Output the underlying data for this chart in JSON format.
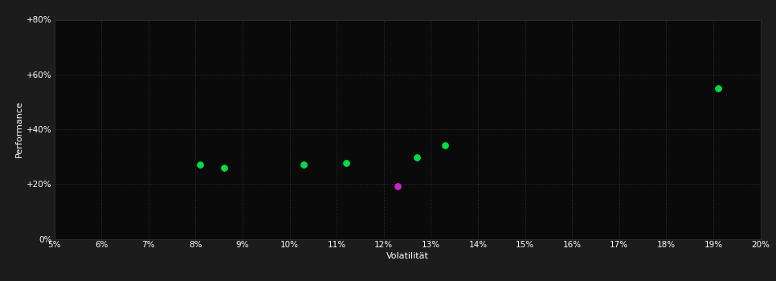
{
  "background_color": "#1c1c1c",
  "plot_bg_color": "#0a0a0a",
  "grid_color": "#3a3a3a",
  "text_color": "#ffffff",
  "xlabel": "Volatilität",
  "ylabel": "Performance",
  "xlim": [
    0.05,
    0.2
  ],
  "ylim": [
    0.0,
    0.8
  ],
  "xticks": [
    0.05,
    0.06,
    0.07,
    0.08,
    0.09,
    0.1,
    0.11,
    0.12,
    0.13,
    0.14,
    0.15,
    0.16,
    0.17,
    0.18,
    0.19,
    0.2
  ],
  "yticks": [
    0.0,
    0.2,
    0.4,
    0.6,
    0.8
  ],
  "green_points": [
    [
      0.081,
      0.27
    ],
    [
      0.086,
      0.258
    ],
    [
      0.103,
      0.27
    ],
    [
      0.112,
      0.278
    ],
    [
      0.127,
      0.298
    ],
    [
      0.133,
      0.34
    ],
    [
      0.191,
      0.548
    ]
  ],
  "magenta_points": [
    [
      0.123,
      0.193
    ]
  ],
  "green_color": "#00dd44",
  "magenta_color": "#cc22cc",
  "marker_size": 28,
  "title": ""
}
